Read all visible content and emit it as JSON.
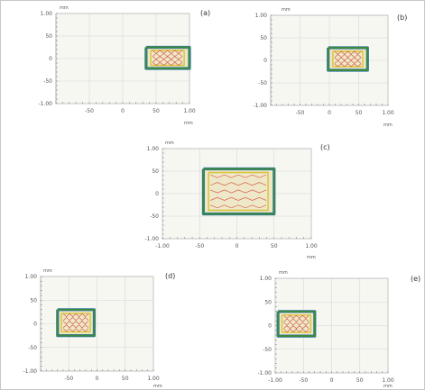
{
  "colors": {
    "frame": "#c8c8c8",
    "plot_bg": "#f7f7f2",
    "grid": "#d6d6d6",
    "axis_text": "#555555",
    "outer": "#3c8a3c",
    "outer_edge": "#2f6fd0",
    "inner": "#d8c23a",
    "track": "#d04a3a",
    "fill": "#efe8c8"
  },
  "chart_data": [
    {
      "panel": "(a)",
      "type": "line",
      "xlabel": "mm",
      "ylabel": "mm",
      "xlim": [
        -100,
        100
      ],
      "ylim": [
        -100,
        100
      ],
      "xticks": [
        "-50",
        "0",
        "50",
        "1.00"
      ],
      "yticks": [
        "1.00",
        "50",
        "0",
        "-50",
        "-1.00"
      ],
      "xtick_values": [
        -50,
        0,
        50,
        100
      ],
      "ytick_values": [
        100,
        50,
        0,
        -50,
        -100
      ],
      "series": [
        {
          "values": [
            [
              35,
              25
            ],
            [
              100,
              25
            ],
            [
              100,
              -22
            ],
            [
              35,
              -22
            ],
            [
              35,
              25
            ]
          ]
        },
        {
          "values": [
            [
              42,
              18
            ],
            [
              92,
              18
            ],
            [
              92,
              -15
            ],
            [
              42,
              -15
            ],
            [
              42,
              18
            ]
          ]
        }
      ]
    },
    {
      "panel": "(b)",
      "type": "line",
      "xlabel": "mm",
      "ylabel": "mm",
      "xlim": [
        -100,
        100
      ],
      "ylim": [
        -100,
        100
      ],
      "xticks": [
        "-50",
        "0",
        "50",
        "1.00"
      ],
      "yticks": [
        "1.00",
        "50",
        "0",
        "-50",
        "-1.00"
      ],
      "xtick_values": [
        -50,
        0,
        50,
        100
      ],
      "ytick_values": [
        100,
        50,
        0,
        -50,
        -100
      ],
      "series": [
        {
          "values": [
            [
              -2,
              28
            ],
            [
              65,
              28
            ],
            [
              65,
              -22
            ],
            [
              -2,
              -22
            ],
            [
              -2,
              28
            ]
          ]
        },
        {
          "values": [
            [
              6,
              20
            ],
            [
              57,
              20
            ],
            [
              57,
              -14
            ],
            [
              6,
              -14
            ],
            [
              6,
              20
            ]
          ]
        }
      ]
    },
    {
      "panel": "(c)",
      "type": "line",
      "xlabel": "mm",
      "ylabel": "mm",
      "xlim": [
        -100,
        100
      ],
      "ylim": [
        -100,
        100
      ],
      "xticks": [
        "-1.00",
        "-50",
        "0",
        "50",
        "1.00"
      ],
      "yticks": [
        "1.00",
        "50",
        "0",
        "-50",
        "-1.00"
      ],
      "xtick_values": [
        -100,
        -50,
        0,
        50,
        100
      ],
      "ytick_values": [
        100,
        50,
        0,
        -50,
        -100
      ],
      "series": [
        {
          "values": [
            [
              -45,
              55
            ],
            [
              50,
              55
            ],
            [
              50,
              -45
            ],
            [
              -45,
              -45
            ],
            [
              -45,
              55
            ]
          ]
        },
        {
          "values": [
            [
              -38,
              47
            ],
            [
              42,
              47
            ],
            [
              42,
              -37
            ],
            [
              -38,
              -37
            ],
            [
              -38,
              47
            ]
          ]
        }
      ]
    },
    {
      "panel": "(d)",
      "type": "line",
      "xlabel": "mm",
      "ylabel": "mm",
      "xlim": [
        -100,
        100
      ],
      "ylim": [
        -100,
        100
      ],
      "xticks": [
        "-50",
        "0",
        "50",
        "1.00"
      ],
      "yticks": [
        "1.00",
        "50",
        "0",
        "-50",
        "-1.00"
      ],
      "xtick_values": [
        -50,
        0,
        50,
        100
      ],
      "ytick_values": [
        100,
        50,
        0,
        -50,
        -100
      ],
      "series": [
        {
          "values": [
            [
              -70,
              30
            ],
            [
              -5,
              30
            ],
            [
              -5,
              -25
            ],
            [
              -70,
              -25
            ],
            [
              -70,
              30
            ]
          ]
        },
        {
          "values": [
            [
              -63,
              22
            ],
            [
              -12,
              22
            ],
            [
              -12,
              -17
            ],
            [
              -63,
              -17
            ],
            [
              -63,
              22
            ]
          ]
        }
      ]
    },
    {
      "panel": "(e)",
      "type": "line",
      "xlabel": "mm",
      "ylabel": "mm",
      "xlim": [
        -100,
        100
      ],
      "ylim": [
        -100,
        100
      ],
      "xticks": [
        "-1.00",
        "-50",
        "0",
        "50",
        "1.00"
      ],
      "yticks": [
        "1.00",
        "50",
        "0",
        "-50",
        "-1.00"
      ],
      "xtick_values": [
        -100,
        -50,
        0,
        50,
        100
      ],
      "ytick_values": [
        100,
        50,
        0,
        -50,
        -100
      ],
      "series": [
        {
          "values": [
            [
              -95,
              30
            ],
            [
              -30,
              30
            ],
            [
              -30,
              -22
            ],
            [
              -95,
              -22
            ],
            [
              -95,
              30
            ]
          ]
        },
        {
          "values": [
            [
              -88,
              22
            ],
            [
              -37,
              22
            ],
            [
              -37,
              -14
            ],
            [
              -88,
              -14
            ],
            [
              -88,
              22
            ]
          ]
        }
      ]
    }
  ]
}
